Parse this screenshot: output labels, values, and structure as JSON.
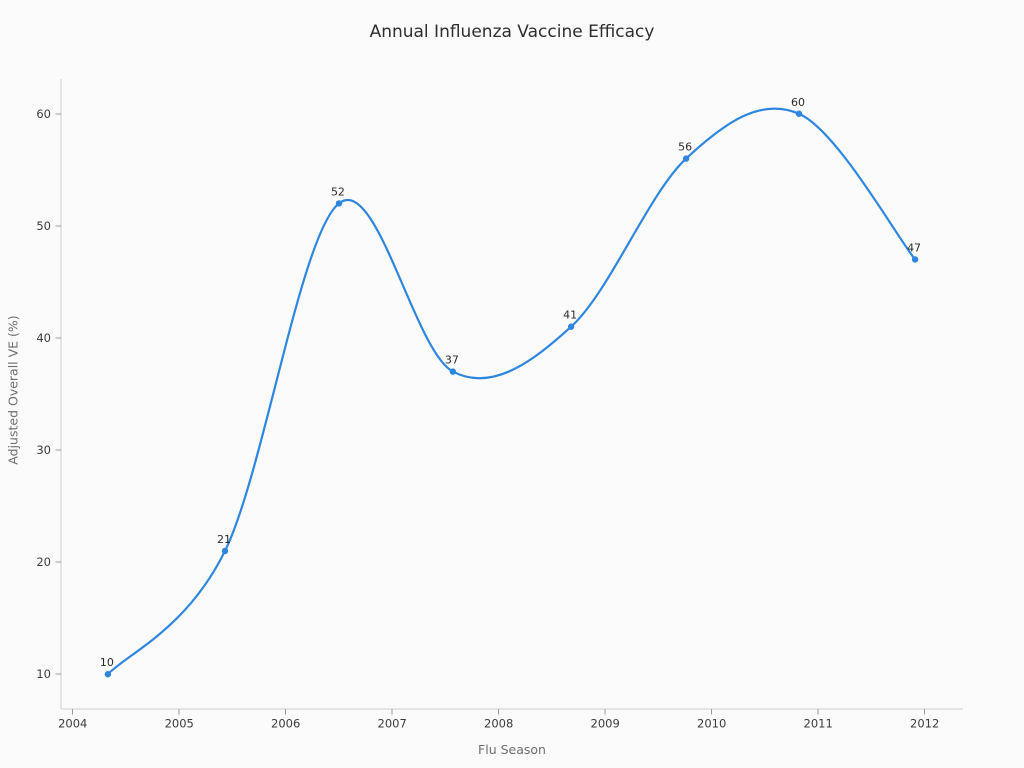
{
  "chart_data": {
    "type": "line",
    "title": "Annual Influenza Vaccine Efficacy",
    "xlabel": "Flu Season",
    "ylabel": "Adjusted Overall VE (%)",
    "x": [
      2004.33,
      2005.43,
      2006.5,
      2007.57,
      2008.68,
      2009.76,
      2010.82,
      2011.91
    ],
    "values": [
      10,
      21,
      52,
      37,
      41,
      56,
      60,
      47
    ],
    "point_labels": [
      "10",
      "21",
      "52",
      "37",
      "41",
      "56",
      "60",
      "47"
    ],
    "x_ticks": [
      2004,
      2005,
      2006,
      2007,
      2008,
      2009,
      2010,
      2011,
      2012
    ],
    "y_ticks": [
      10,
      20,
      30,
      40,
      50,
      60
    ],
    "xlim": [
      2003.89,
      2012.36
    ],
    "ylim": [
      6.9,
      63.1
    ],
    "line_color": "#2e86de",
    "marker_color": "#2e86de",
    "smooth": true,
    "grid": false,
    "legend": "none"
  }
}
